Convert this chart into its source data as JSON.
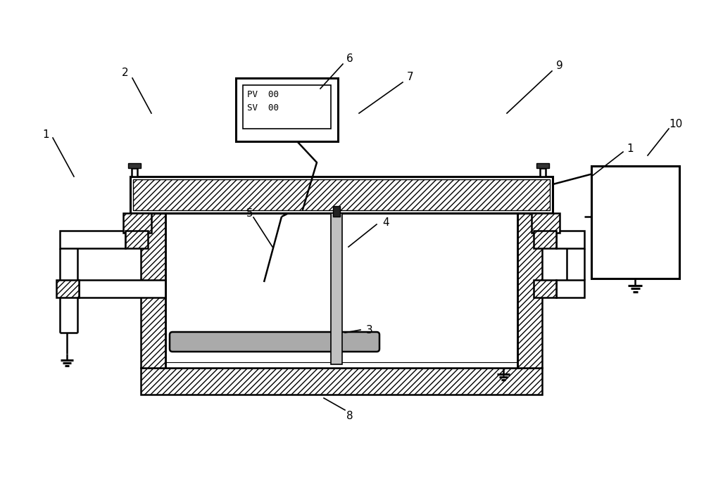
{
  "bg": "#ffffff",
  "lc": "#000000",
  "gray": "#aaaaaa",
  "fw": 10.0,
  "fh": 6.91,
  "dpi": 100,
  "mon_lines": [
    "PV  00",
    "SV  00"
  ],
  "lw_main": 1.8,
  "lw_thick": 2.2,
  "lw_thin": 1.0,
  "hatch_density": "////",
  "font_size": 11
}
